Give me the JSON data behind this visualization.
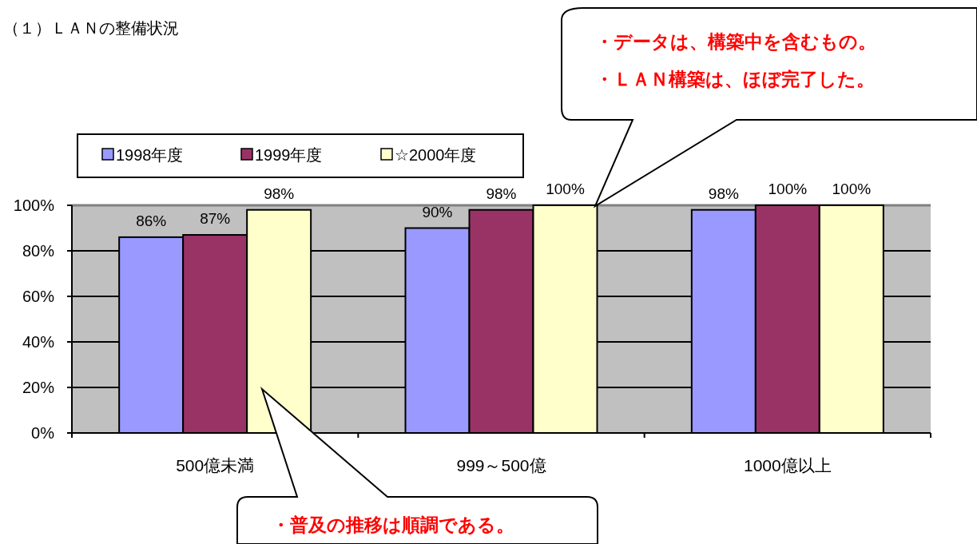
{
  "chart_data": {
    "type": "bar",
    "title": "（１）ＬＡＮの整備状況",
    "categories": [
      "500億未満",
      "999～500億",
      "1000億以上"
    ],
    "series": [
      {
        "name": "1998年度",
        "color": "#9999ff",
        "values": [
          86,
          90,
          98
        ],
        "value_labels": [
          "86%",
          "90%",
          "98%"
        ]
      },
      {
        "name": "1999年度",
        "color": "#993366",
        "values": [
          87,
          98,
          100
        ],
        "value_labels": [
          "87%",
          "98%",
          "100%"
        ]
      },
      {
        "name": "☆2000年度",
        "color": "#ffffcc",
        "values": [
          98,
          100,
          100
        ],
        "value_labels": [
          "98%",
          "100%",
          "100%"
        ]
      }
    ],
    "ylim": [
      0,
      100
    ],
    "yticks": [
      {
        "value": 0,
        "label": "0%"
      },
      {
        "value": 20,
        "label": "20%"
      },
      {
        "value": 40,
        "label": "40%"
      },
      {
        "value": 60,
        "label": "60%"
      },
      {
        "value": 80,
        "label": "80%"
      },
      {
        "value": 100,
        "label": "100%"
      }
    ],
    "grid": "y",
    "legend": "top left",
    "annotations": [
      "・データは、構築中を含むもの。",
      "・ＬＡＮ構築は、ほぼ完了した。",
      "・普及の推移は順調である。"
    ]
  }
}
